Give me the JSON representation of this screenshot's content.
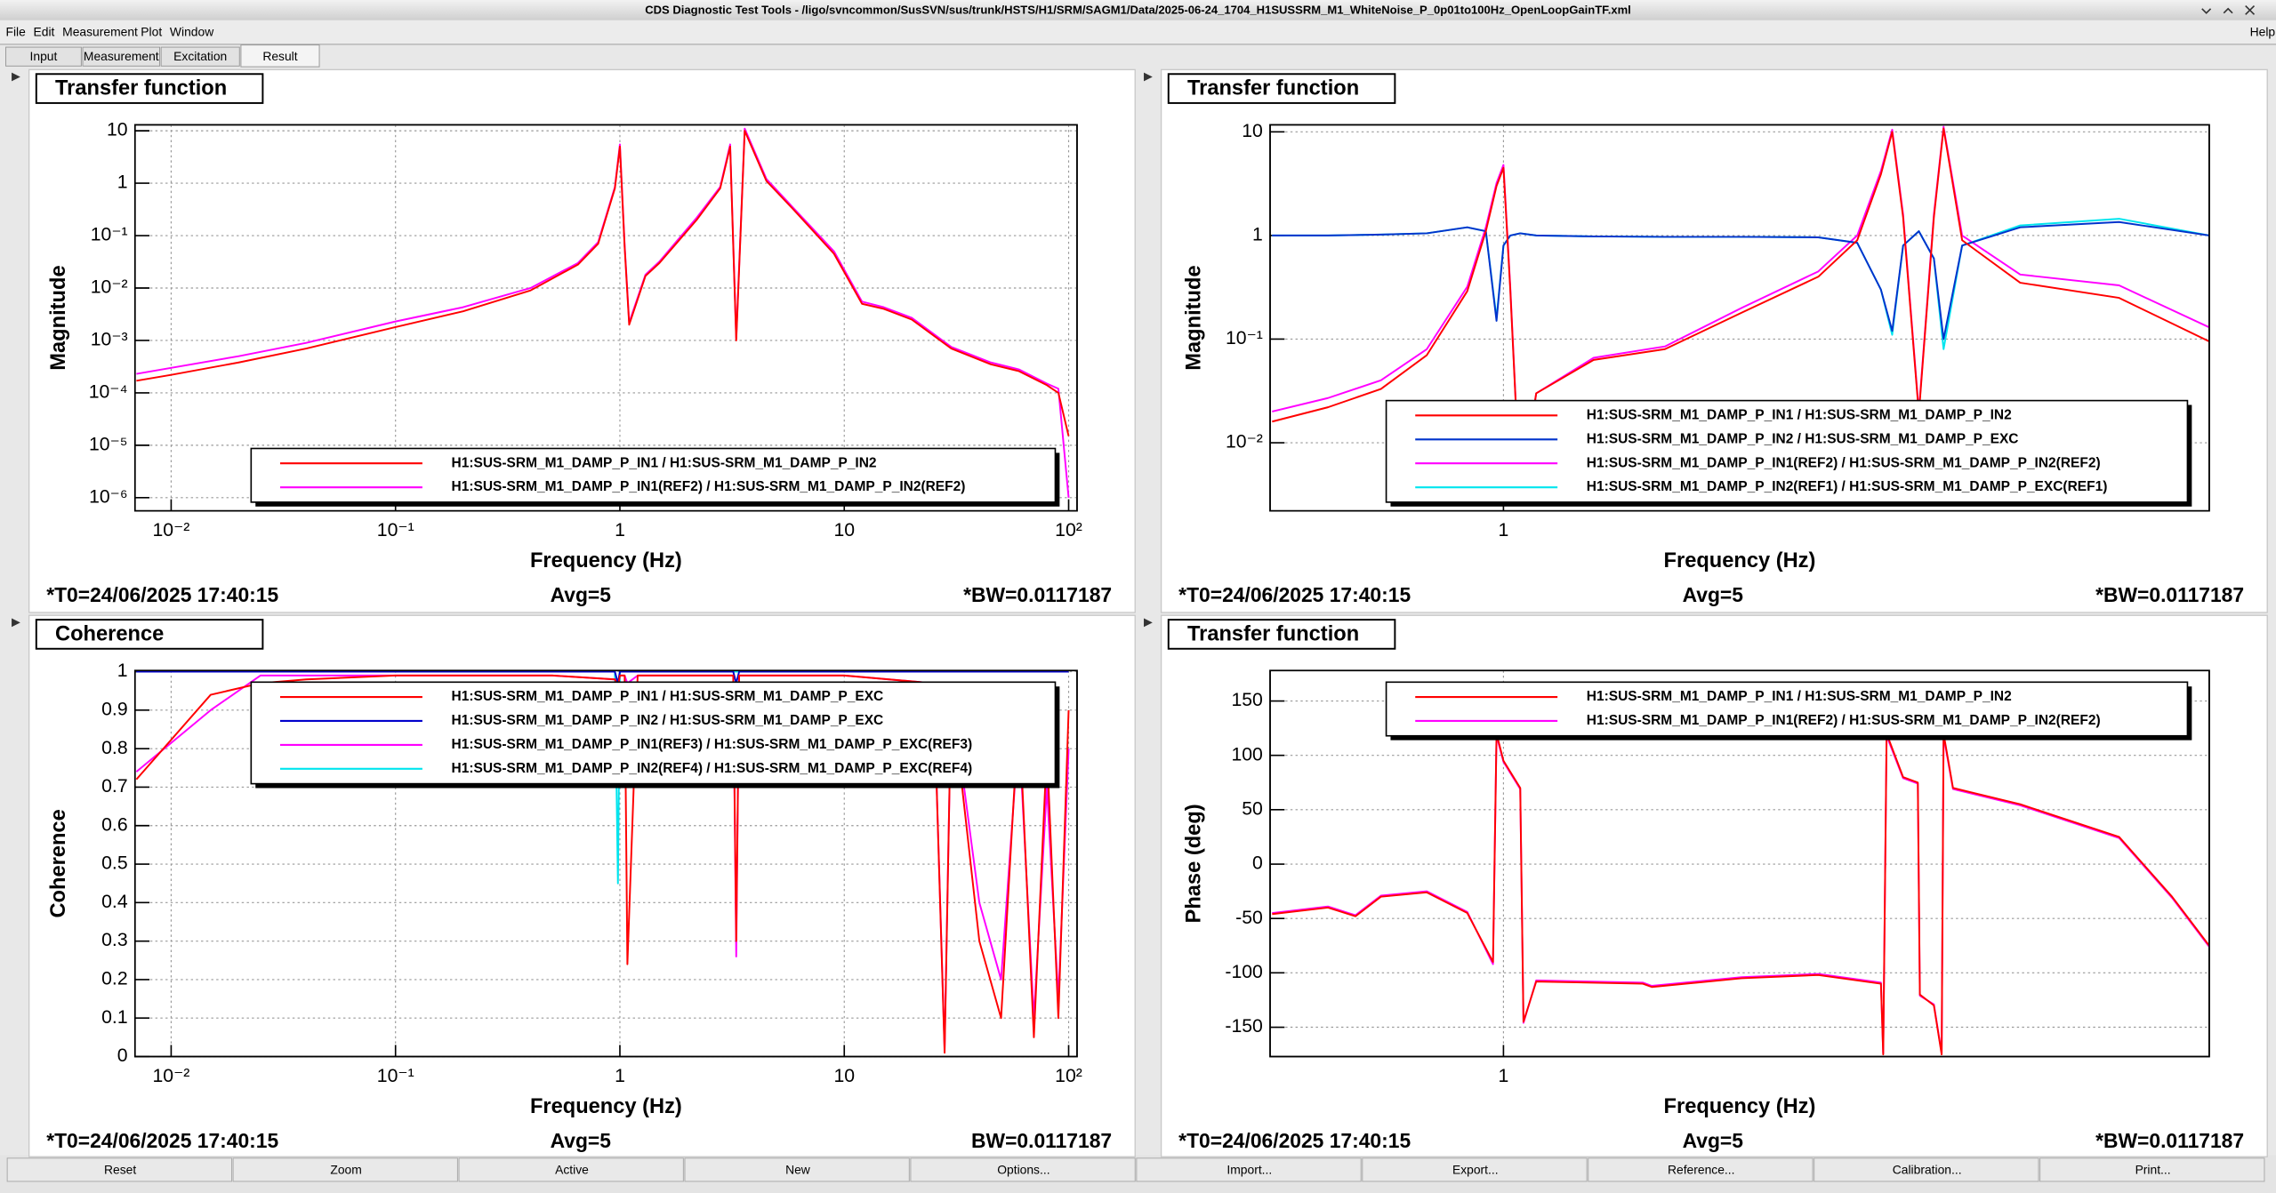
{
  "window": {
    "title": "CDS Diagnostic Test Tools - /ligo/svncommon/SusSVN/sus/trunk/HSTS/H1/SRM/SAGM1/Data/2025-06-24_1704_H1SUSSRM_M1_WhiteNoise_P_0p01to100Hz_OpenLoopGainTF.xml",
    "help": "Help"
  },
  "menu": [
    "File",
    "Edit",
    "Measurement",
    "Plot",
    "Window"
  ],
  "tabs": [
    "Input",
    "Measurement",
    "Excitation",
    "Result"
  ],
  "buttons": [
    "Reset",
    "Zoom",
    "Active",
    "New",
    "Options...",
    "Import...",
    "Export...",
    "Reference...",
    "Calibration...",
    "Print..."
  ],
  "chart_data": [
    {
      "type": "line",
      "title": "Transfer function",
      "xlabel": "Frequency (Hz)",
      "ylabel": "Magnitude",
      "xscale": "log",
      "yscale": "log",
      "grid": true,
      "legend": "lower right",
      "xlim": [
        0.0069,
        109
      ],
      "ylim": [
        5.6e-07,
        13
      ],
      "xticks": [
        {
          "value": 0.01,
          "label": "10⁻²"
        },
        {
          "value": 0.1,
          "label": "10⁻¹"
        },
        1,
        10,
        {
          "value": 100,
          "label": "10²"
        }
      ],
      "yticks": [
        {
          "value": 1e-06,
          "label": "10⁻⁶"
        },
        {
          "value": 1e-05,
          "label": "10⁻⁵"
        },
        {
          "value": 0.0001,
          "label": "10⁻⁴"
        },
        {
          "value": 0.001,
          "label": "10⁻³"
        },
        {
          "value": 0.01,
          "label": "10⁻²"
        },
        {
          "value": 0.1,
          "label": "10⁻¹"
        },
        1,
        10
      ],
      "x": [
        0.007,
        0.01,
        0.02,
        0.04,
        0.1,
        0.2,
        0.4,
        0.65,
        0.8,
        0.95,
        1.0,
        1.05,
        1.1,
        1.3,
        1.5,
        2.2,
        2.8,
        3.1,
        3.3,
        3.6,
        4.5,
        6,
        9,
        12,
        15,
        20,
        30,
        45,
        60,
        80,
        90,
        100
      ],
      "series": [
        {
          "name": "H1:SUS-SRM_M1_DAMP_P_IN1 / H1:SUS-SRM_M1_DAMP_P_IN2",
          "color": "#ff0000",
          "values": [
            0.00017,
            0.00022,
            0.00038,
            0.0007,
            0.0018,
            0.0036,
            0.009,
            0.028,
            0.07,
            0.8,
            5,
            0.06,
            0.002,
            0.017,
            0.03,
            0.2,
            0.8,
            5,
            0.001,
            10,
            1.1,
            0.3,
            0.045,
            0.005,
            0.004,
            0.0025,
            0.0007,
            0.00035,
            0.00026,
            0.00014,
            0.0001,
            1.5e-05
          ]
        },
        {
          "name": "H1:SUS-SRM_M1_DAMP_P_IN1(REF2) / H1:SUS-SRM_M1_DAMP_P_IN2(REF2)",
          "color": "#ff00ff",
          "values": [
            0.00023,
            0.0003,
            0.0005,
            0.0009,
            0.0023,
            0.0043,
            0.01,
            0.03,
            0.075,
            0.85,
            5.5,
            0.065,
            0.0022,
            0.018,
            0.032,
            0.22,
            0.85,
            5.5,
            0.0011,
            11,
            1.2,
            0.32,
            0.05,
            0.0055,
            0.0043,
            0.0027,
            0.00075,
            0.00038,
            0.00028,
            0.00015,
            0.00012,
            1e-06
          ]
        }
      ],
      "status": {
        "t0": "*T0=24/06/2025 17:40:15",
        "avg": "Avg=5",
        "bw": "*BW=0.0117187"
      }
    },
    {
      "type": "line",
      "title": "Transfer function",
      "xlabel": "Frequency (Hz)",
      "ylabel": "Magnitude",
      "xscale": "log",
      "yscale": "log",
      "grid": true,
      "legend": "lower right",
      "xlim": [
        0.507,
        7.8
      ],
      "ylim": [
        0.0022,
        11.7
      ],
      "xticks": [
        1
      ],
      "yticks": [
        {
          "value": 0.01,
          "label": "10⁻²"
        },
        {
          "value": 0.1,
          "label": "10⁻¹"
        },
        1,
        10
      ],
      "x": [
        0.51,
        0.6,
        0.7,
        0.8,
        0.9,
        0.95,
        0.98,
        1.0,
        1.02,
        1.05,
        1.1,
        1.3,
        1.6,
        2.0,
        2.5,
        2.8,
        3.0,
        3.1,
        3.2,
        3.35,
        3.5,
        3.6,
        3.8,
        4.5,
        6,
        7.8
      ],
      "series": [
        {
          "name": "H1:SUS-SRM_M1_DAMP_P_IN1 / H1:SUS-SRM_M1_DAMP_P_IN2",
          "color": "#ff0000",
          "values": [
            0.016,
            0.022,
            0.033,
            0.07,
            0.29,
            1.1,
            3,
            4.5,
            0.3,
            0.003,
            0.03,
            0.063,
            0.08,
            0.18,
            0.4,
            0.9,
            3.9,
            10,
            1.5,
            0.019,
            1.5,
            10.8,
            0.9,
            0.35,
            0.25,
            0.095
          ]
        },
        {
          "name": "H1:SUS-SRM_M1_DAMP_P_IN2 / H1:SUS-SRM_M1_DAMP_P_EXC",
          "color": "#0033cc",
          "values": [
            1.0,
            1.0,
            1.02,
            1.05,
            1.2,
            1.1,
            0.15,
            0.8,
            1.0,
            1.05,
            1.0,
            0.98,
            0.97,
            0.97,
            0.96,
            0.85,
            0.3,
            0.12,
            0.8,
            1.1,
            0.6,
            0.1,
            0.8,
            1.2,
            1.35,
            1.0
          ]
        },
        {
          "name": "H1:SUS-SRM_M1_DAMP_P_IN1(REF2) / H1:SUS-SRM_M1_DAMP_P_IN2(REF2)",
          "color": "#ff00ff",
          "values": [
            0.02,
            0.027,
            0.04,
            0.08,
            0.32,
            1.2,
            3.2,
            4.8,
            0.32,
            0.003,
            0.03,
            0.066,
            0.085,
            0.2,
            0.45,
            1.0,
            4.2,
            10.5,
            1.6,
            0.02,
            1.6,
            11.2,
            1.0,
            0.42,
            0.33,
            0.13
          ]
        },
        {
          "name": "H1:SUS-SRM_M1_DAMP_P_IN2(REF1) / H1:SUS-SRM_M1_DAMP_P_EXC(REF1)",
          "color": "#00e5ee",
          "values": [
            1.0,
            1.0,
            1.02,
            1.05,
            1.2,
            1.1,
            0.16,
            0.8,
            1.0,
            1.05,
            1.0,
            0.98,
            0.97,
            0.97,
            0.96,
            0.85,
            0.3,
            0.11,
            0.8,
            1.1,
            0.6,
            0.08,
            0.8,
            1.25,
            1.45,
            1.0
          ]
        }
      ],
      "status": {
        "t0": "*T0=24/06/2025 17:40:15",
        "avg": "Avg=5",
        "bw": "*BW=0.0117187"
      }
    },
    {
      "type": "line",
      "title": "Coherence",
      "xlabel": "Frequency (Hz)",
      "ylabel": "Coherence",
      "xscale": "log",
      "yscale": "linear",
      "grid": true,
      "legend": "upper right",
      "xlim": [
        0.0069,
        109
      ],
      "ylim": [
        0,
        1.003
      ],
      "xticks": [
        {
          "value": 0.01,
          "label": "10⁻²"
        },
        {
          "value": 0.1,
          "label": "10⁻¹"
        },
        1,
        10,
        {
          "value": 100,
          "label": "10²"
        }
      ],
      "yticks": [
        0,
        0.1,
        0.2,
        0.3,
        0.4,
        0.5,
        0.6,
        0.7,
        0.8,
        0.9,
        1
      ],
      "x": [
        0.007,
        0.015,
        0.025,
        0.04,
        0.1,
        0.5,
        0.95,
        0.98,
        1.0,
        1.05,
        1.08,
        1.2,
        3.2,
        3.3,
        3.4,
        10,
        25,
        28,
        30,
        40,
        50,
        60,
        70,
        80,
        90,
        100
      ],
      "series": [
        {
          "name": "H1:SUS-SRM_M1_DAMP_P_IN1 / H1:SUS-SRM_M1_DAMP_P_EXC",
          "color": "#ff0000",
          "values": [
            0.72,
            0.94,
            0.97,
            0.98,
            0.99,
            0.99,
            0.98,
            0.96,
            0.99,
            0.99,
            0.24,
            0.99,
            0.99,
            0.3,
            0.99,
            0.99,
            0.97,
            0.01,
            0.95,
            0.3,
            0.1,
            0.9,
            0.05,
            0.8,
            0.1,
            0.9
          ]
        },
        {
          "name": "H1:SUS-SRM_M1_DAMP_P_IN2 / H1:SUS-SRM_M1_DAMP_P_EXC",
          "color": "#0000cc",
          "values": [
            1,
            1,
            1,
            1,
            1,
            1,
            1,
            0.97,
            1,
            1,
            1,
            1,
            1,
            0.97,
            1,
            1,
            1,
            1,
            1,
            1,
            1,
            1,
            1,
            1,
            1,
            1
          ]
        },
        {
          "name": "H1:SUS-SRM_M1_DAMP_P_IN1(REF3) / H1:SUS-SRM_M1_DAMP_P_EXC(REF3)",
          "color": "#ff00ff",
          "values": [
            0.74,
            0.9,
            0.99,
            0.99,
            0.99,
            0.99,
            0.98,
            0.97,
            0.99,
            0.99,
            0.97,
            0.99,
            0.99,
            0.26,
            0.99,
            0.99,
            0.97,
            0.02,
            0.95,
            0.4,
            0.2,
            0.85,
            0.1,
            0.7,
            0.15,
            0.8
          ]
        },
        {
          "name": "H1:SUS-SRM_M1_DAMP_P_IN2(REF4) / H1:SUS-SRM_M1_DAMP_P_EXC(REF4)",
          "color": "#00e5ee",
          "values": [
            1,
            1,
            1,
            1,
            1,
            1,
            1,
            0.45,
            1,
            1,
            1,
            1,
            1,
            1,
            1,
            1,
            1,
            1,
            1,
            1,
            1,
            1,
            1,
            1,
            1,
            1
          ]
        }
      ],
      "status": {
        "t0": "*T0=24/06/2025 17:40:15",
        "avg": "Avg=5",
        "bw": "BW=0.0117187"
      }
    },
    {
      "type": "line",
      "title": "Transfer function",
      "xlabel": "Frequency (Hz)",
      "ylabel": "Phase (deg)",
      "xscale": "log",
      "yscale": "linear",
      "grid": true,
      "legend": "upper right",
      "xlim": [
        0.507,
        7.8
      ],
      "ylim": [
        -177,
        178
      ],
      "xticks": [
        1
      ],
      "yticks": [
        -150,
        -100,
        -50,
        0,
        50,
        100,
        150
      ],
      "x": [
        0.51,
        0.6,
        0.65,
        0.7,
        0.8,
        0.9,
        0.97,
        0.98,
        1.0,
        1.05,
        1.06,
        1.1,
        1.5,
        1.54,
        2.0,
        2.5,
        3.0,
        3.02,
        3.05,
        3.2,
        3.34,
        3.36,
        3.5,
        3.58,
        3.6,
        3.7,
        4.5,
        6,
        7,
        7.8
      ],
      "series": [
        {
          "name": "H1:SUS-SRM_M1_DAMP_P_IN1 / H1:SUS-SRM_M1_DAMP_P_IN2",
          "color": "#ff0000",
          "values": [
            -46,
            -40,
            -48,
            -30,
            -26,
            -45,
            -90,
            120,
            95,
            70,
            -145,
            -108,
            -110,
            -113,
            -105,
            -102,
            -110,
            -175,
            120,
            80,
            75,
            -120,
            -130,
            -175,
            120,
            70,
            55,
            25,
            -30,
            -75
          ]
        },
        {
          "name": "H1:SUS-SRM_M1_DAMP_P_IN1(REF2) / H1:SUS-SRM_M1_DAMP_P_IN2(REF2)",
          "color": "#ff00ff",
          "values": [
            -45,
            -39,
            -47,
            -29,
            -25,
            -44,
            -92,
            118,
            94,
            69,
            -146,
            -107,
            -109,
            -112,
            -104,
            -101,
            -109,
            -174,
            118,
            79,
            74,
            -121,
            -129,
            -174,
            118,
            69,
            54,
            24,
            -31,
            -76
          ]
        }
      ],
      "status": {
        "t0": "*T0=24/06/2025 17:40:15",
        "avg": "Avg=5",
        "bw": "*BW=0.0117187"
      }
    }
  ]
}
